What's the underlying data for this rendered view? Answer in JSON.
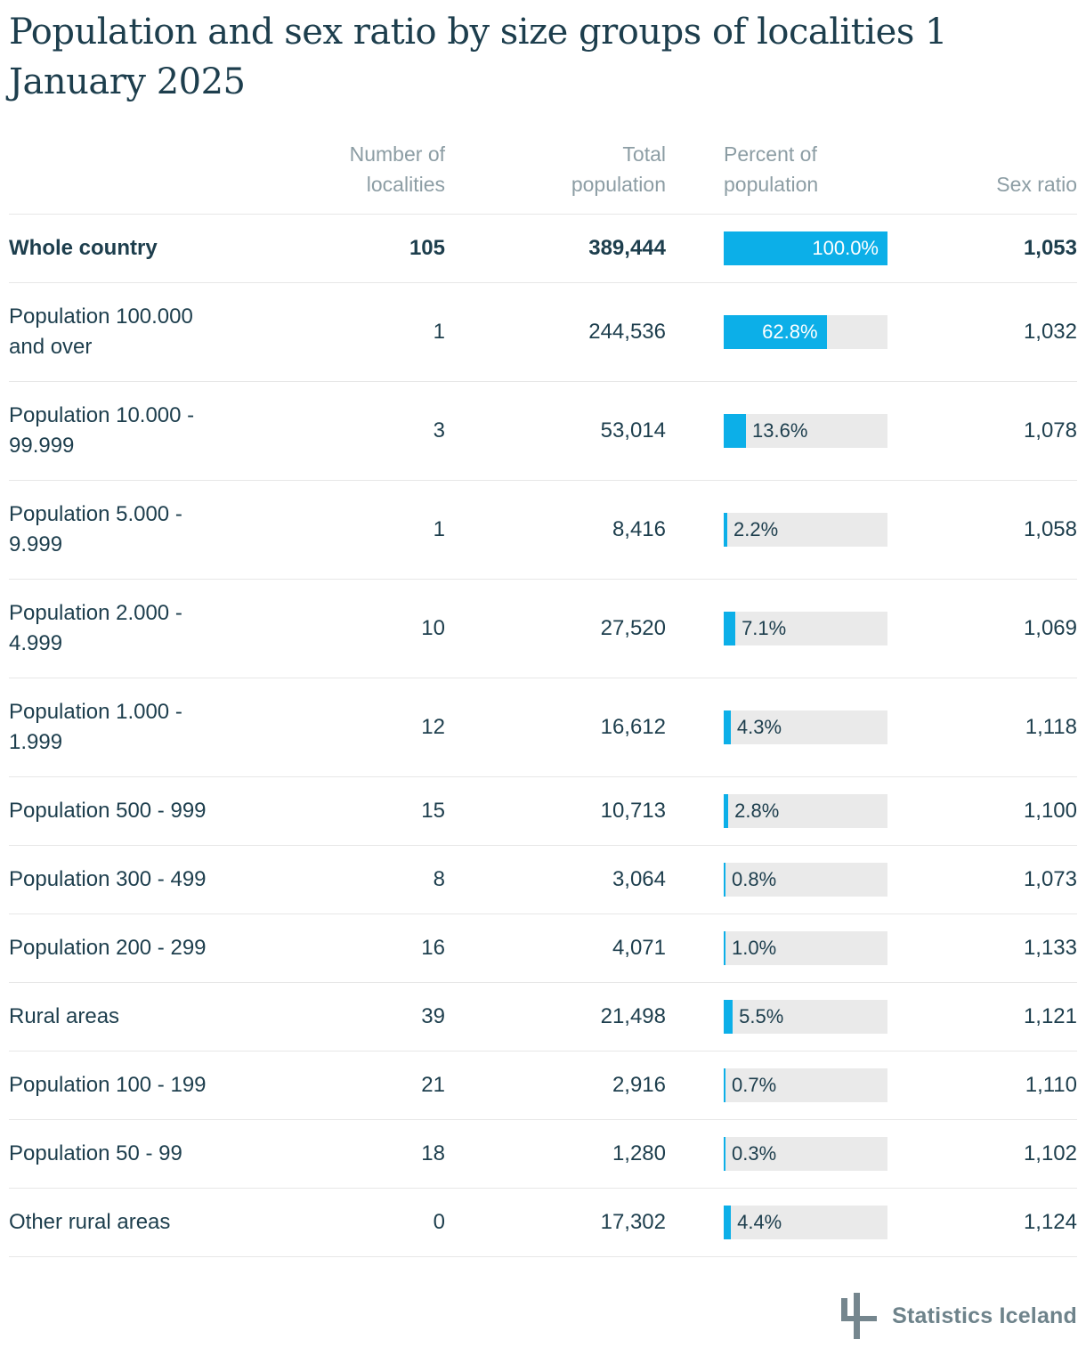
{
  "page_title": "Population and sex ratio by size groups of localities 1\nJanuary 2025",
  "table": {
    "headers": {
      "localities": "Number of\nlocalities",
      "population": "Total\npopulation",
      "percent": "Percent of\npopulation",
      "sex_ratio": "Sex ratio"
    },
    "rows": [
      {
        "label": "Whole country",
        "localities": "105",
        "population": "389,444",
        "percent": 100.0,
        "percent_label": "100.0%",
        "sex_ratio": "1,053"
      },
      {
        "label": "Population 100.000\nand over",
        "localities": "1",
        "population": "244,536",
        "percent": 62.8,
        "percent_label": "62.8%",
        "sex_ratio": "1,032"
      },
      {
        "label": "Population 10.000 -\n99.999",
        "localities": "3",
        "population": "53,014",
        "percent": 13.6,
        "percent_label": "13.6%",
        "sex_ratio": "1,078"
      },
      {
        "label": "Population 5.000 -\n9.999",
        "localities": "1",
        "population": "8,416",
        "percent": 2.2,
        "percent_label": "2.2%",
        "sex_ratio": "1,058"
      },
      {
        "label": "Population 2.000 -\n4.999",
        "localities": "10",
        "population": "27,520",
        "percent": 7.1,
        "percent_label": "7.1%",
        "sex_ratio": "1,069"
      },
      {
        "label": "Population 1.000 -\n1.999",
        "localities": "12",
        "population": "16,612",
        "percent": 4.3,
        "percent_label": "4.3%",
        "sex_ratio": "1,118"
      },
      {
        "label": "Population 500 - 999",
        "localities": "15",
        "population": "10,713",
        "percent": 2.8,
        "percent_label": "2.8%",
        "sex_ratio": "1,100"
      },
      {
        "label": "Population 300 - 499",
        "localities": "8",
        "population": "3,064",
        "percent": 0.8,
        "percent_label": "0.8%",
        "sex_ratio": "1,073"
      },
      {
        "label": "Population 200 - 299",
        "localities": "16",
        "population": "4,071",
        "percent": 1.0,
        "percent_label": "1.0%",
        "sex_ratio": "1,133"
      },
      {
        "label": "Rural areas",
        "localities": "39",
        "population": "21,498",
        "percent": 5.5,
        "percent_label": "5.5%",
        "sex_ratio": "1,121"
      },
      {
        "label": "Population 100 - 199",
        "localities": "21",
        "population": "2,916",
        "percent": 0.7,
        "percent_label": "0.7%",
        "sex_ratio": "1,110"
      },
      {
        "label": "Population 50 - 99",
        "localities": "18",
        "population": "1,280",
        "percent": 0.3,
        "percent_label": "0.3%",
        "sex_ratio": "1,102"
      },
      {
        "label": "Other rural areas",
        "localities": "0",
        "population": "17,302",
        "percent": 4.4,
        "percent_label": "4.4%",
        "sex_ratio": "1,124"
      }
    ]
  },
  "footer": {
    "brand": "Statistics Iceland"
  },
  "colors": {
    "accent_blue": "#0cafe8",
    "bar_track": "#eaeaea",
    "text_dark": "#1d3e4d",
    "header_gray": "#8c9da4",
    "divider": "#e7e7e7",
    "logo_slate": "#75868e",
    "logo_text": "#6e838b"
  },
  "chart_data": {
    "type": "table",
    "title": "Population and sex ratio by size groups of localities 1 January 2025",
    "columns": [
      "Number of localities",
      "Total population",
      "Percent of population",
      "Sex ratio"
    ],
    "categories": [
      "Whole country",
      "Population 100.000 and over",
      "Population 10.000 - 99.999",
      "Population 5.000 - 9.999",
      "Population 2.000 - 4.999",
      "Population 1.000 - 1.999",
      "Population 500 - 999",
      "Population 300 - 499",
      "Population 200 - 299",
      "Rural areas",
      "Population 100 - 199",
      "Population 50 - 99",
      "Other rural areas"
    ],
    "series": [
      {
        "name": "Number of localities",
        "values": [
          105,
          1,
          3,
          1,
          10,
          12,
          15,
          8,
          16,
          39,
          21,
          18,
          0
        ]
      },
      {
        "name": "Total population",
        "values": [
          389444,
          244536,
          53014,
          8416,
          27520,
          16612,
          10713,
          3064,
          4071,
          21498,
          2916,
          1280,
          17302
        ]
      },
      {
        "name": "Percent of population",
        "values": [
          100.0,
          62.8,
          13.6,
          2.2,
          7.1,
          4.3,
          2.8,
          0.8,
          1.0,
          5.5,
          0.7,
          0.3,
          4.4
        ]
      },
      {
        "name": "Sex ratio",
        "values": [
          1053,
          1032,
          1078,
          1058,
          1069,
          1118,
          1100,
          1073,
          1133,
          1121,
          1110,
          1102,
          1124
        ]
      }
    ],
    "bar_column": "Percent of population",
    "bar_range": [
      0,
      100
    ],
    "bar_style": "inline horizontal bars in Percent of population column, blue fill on light gray track"
  }
}
